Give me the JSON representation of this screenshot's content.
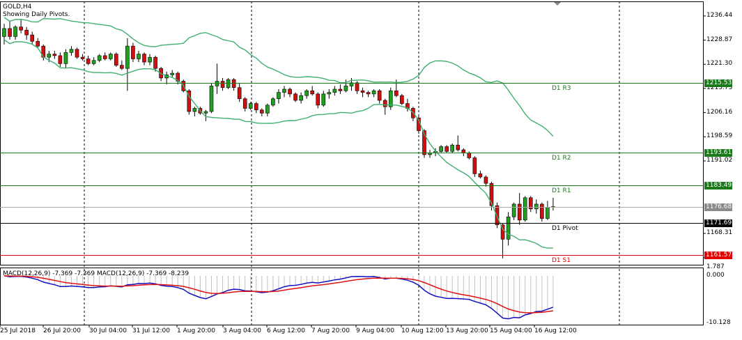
{
  "chart": {
    "symbol_label": "GOLD,H4",
    "indicator_note": "Showing Daily Pivots.",
    "macd_label": "MACD(12,26,9) -7.369 -7.369 MACD(12,26,9) -7.369 -8.239",
    "price_ticks": [
      "1236.44",
      "1228.87",
      "1221.30",
      "1213.73",
      "1206.16",
      "1198.59",
      "1191.02",
      "1168.31",
      "1160.74"
    ],
    "macd_ticks": [
      "1.787",
      "0.000",
      "-10.128"
    ],
    "time_ticks": [
      "25 Jul 2018",
      "26 Jul 20:00",
      "30 Jul 04:00",
      "31 Jul 12:00",
      "1 Aug 20:00",
      "3 Aug 04:00",
      "6 Aug 12:00",
      "7 Aug 20:00",
      "9 Aug 04:00",
      "10 Aug 12:00",
      "13 Aug 20:00",
      "15 Aug 04:00",
      "16 Aug 12:00"
    ],
    "pivots": [
      {
        "name": "D1 R3",
        "price": "1215.53",
        "value": 1215.53,
        "color": "#1a7a1a",
        "tag_bg": "#1a7a1a"
      },
      {
        "name": "D1 R2",
        "price": "1193.61",
        "value": 1193.61,
        "color": "#1a7a1a",
        "tag_bg": "#1a7a1a"
      },
      {
        "name": "D1 R1",
        "price": "1183.49",
        "value": 1183.49,
        "color": "#1a7a1a",
        "tag_bg": "#1a7a1a"
      },
      {
        "name": "D1 Pivot",
        "price": "1171.69",
        "value": 1171.69,
        "color": "#000000",
        "tag_bg": "#000000"
      },
      {
        "name": "D1 S1",
        "price": "1161.57",
        "value": 1161.57,
        "color": "#e00000",
        "tag_bg": "#e00000"
      }
    ],
    "current_price": {
      "price": "1176.68",
      "value": 1176.68,
      "tag_bg": "#8a8a8a"
    },
    "colors": {
      "bull": "#1fa01f",
      "bear": "#d01010",
      "band": "#40b070",
      "macd_line": "#1010c0",
      "signal_line": "#e01010",
      "grid": "#000000"
    }
  },
  "chart_data": {
    "type": "candlestick",
    "title": "GOLD,H4",
    "ylim": [
      1158.5,
      1241.0
    ],
    "candles": [
      {
        "o": 1230.0,
        "h": 1234.0,
        "l": 1227.5,
        "c": 1232.5
      },
      {
        "o": 1232.5,
        "h": 1235.0,
        "l": 1229.0,
        "c": 1230.0
      },
      {
        "o": 1230.0,
        "h": 1233.5,
        "l": 1229.0,
        "c": 1233.0
      },
      {
        "o": 1233.0,
        "h": 1235.5,
        "l": 1231.0,
        "c": 1232.0
      },
      {
        "o": 1232.0,
        "h": 1233.0,
        "l": 1229.0,
        "c": 1230.5
      },
      {
        "o": 1230.5,
        "h": 1231.5,
        "l": 1227.5,
        "c": 1228.5
      },
      {
        "o": 1228.5,
        "h": 1229.5,
        "l": 1226.5,
        "c": 1227.0
      },
      {
        "o": 1227.0,
        "h": 1227.5,
        "l": 1222.5,
        "c": 1223.5
      },
      {
        "o": 1223.5,
        "h": 1225.5,
        "l": 1222.0,
        "c": 1224.5
      },
      {
        "o": 1224.5,
        "h": 1225.5,
        "l": 1223.0,
        "c": 1224.0
      },
      {
        "o": 1224.0,
        "h": 1225.0,
        "l": 1220.5,
        "c": 1221.5
      },
      {
        "o": 1221.5,
        "h": 1226.0,
        "l": 1220.0,
        "c": 1225.0
      },
      {
        "o": 1225.0,
        "h": 1227.0,
        "l": 1224.0,
        "c": 1226.0
      },
      {
        "o": 1226.0,
        "h": 1226.5,
        "l": 1223.0,
        "c": 1223.5
      },
      {
        "o": 1223.5,
        "h": 1224.5,
        "l": 1222.5,
        "c": 1223.0
      },
      {
        "o": 1223.0,
        "h": 1224.0,
        "l": 1221.0,
        "c": 1221.5
      },
      {
        "o": 1221.5,
        "h": 1223.5,
        "l": 1221.0,
        "c": 1222.5
      },
      {
        "o": 1222.5,
        "h": 1224.5,
        "l": 1222.0,
        "c": 1224.0
      },
      {
        "o": 1224.0,
        "h": 1225.0,
        "l": 1222.5,
        "c": 1223.0
      },
      {
        "o": 1223.0,
        "h": 1225.0,
        "l": 1222.5,
        "c": 1224.5
      },
      {
        "o": 1224.5,
        "h": 1225.0,
        "l": 1220.5,
        "c": 1221.0
      },
      {
        "o": 1221.0,
        "h": 1222.5,
        "l": 1219.5,
        "c": 1220.0
      },
      {
        "o": 1220.0,
        "h": 1229.5,
        "l": 1213.0,
        "c": 1227.0
      },
      {
        "o": 1227.0,
        "h": 1228.0,
        "l": 1222.0,
        "c": 1223.0
      },
      {
        "o": 1223.0,
        "h": 1225.5,
        "l": 1222.0,
        "c": 1224.5
      },
      {
        "o": 1224.5,
        "h": 1225.0,
        "l": 1221.0,
        "c": 1222.0
      },
      {
        "o": 1222.0,
        "h": 1224.5,
        "l": 1221.0,
        "c": 1223.5
      },
      {
        "o": 1223.5,
        "h": 1224.0,
        "l": 1219.0,
        "c": 1220.0
      },
      {
        "o": 1220.0,
        "h": 1220.5,
        "l": 1216.0,
        "c": 1217.0
      },
      {
        "o": 1217.0,
        "h": 1219.0,
        "l": 1215.0,
        "c": 1218.0
      },
      {
        "o": 1218.0,
        "h": 1219.5,
        "l": 1217.0,
        "c": 1218.5
      },
      {
        "o": 1218.5,
        "h": 1219.0,
        "l": 1215.0,
        "c": 1216.0
      },
      {
        "o": 1216.0,
        "h": 1216.5,
        "l": 1212.5,
        "c": 1213.0
      },
      {
        "o": 1213.0,
        "h": 1213.5,
        "l": 1205.5,
        "c": 1206.5
      },
      {
        "o": 1206.5,
        "h": 1208.0,
        "l": 1205.0,
        "c": 1207.5
      },
      {
        "o": 1207.5,
        "h": 1208.0,
        "l": 1205.5,
        "c": 1206.0
      },
      {
        "o": 1206.0,
        "h": 1207.0,
        "l": 1203.5,
        "c": 1206.5
      },
      {
        "o": 1206.5,
        "h": 1215.5,
        "l": 1206.0,
        "c": 1214.5
      },
      {
        "o": 1214.5,
        "h": 1221.5,
        "l": 1212.0,
        "c": 1216.0
      },
      {
        "o": 1216.0,
        "h": 1217.0,
        "l": 1213.0,
        "c": 1214.0
      },
      {
        "o": 1214.0,
        "h": 1217.0,
        "l": 1213.5,
        "c": 1216.5
      },
      {
        "o": 1216.5,
        "h": 1217.0,
        "l": 1213.0,
        "c": 1214.0
      },
      {
        "o": 1214.0,
        "h": 1215.5,
        "l": 1209.5,
        "c": 1210.5
      },
      {
        "o": 1210.5,
        "h": 1211.0,
        "l": 1206.5,
        "c": 1207.5
      },
      {
        "o": 1207.5,
        "h": 1209.5,
        "l": 1207.0,
        "c": 1209.0
      },
      {
        "o": 1209.0,
        "h": 1209.5,
        "l": 1206.0,
        "c": 1207.0
      },
      {
        "o": 1207.0,
        "h": 1207.5,
        "l": 1205.0,
        "c": 1206.0
      },
      {
        "o": 1206.0,
        "h": 1209.0,
        "l": 1205.0,
        "c": 1208.5
      },
      {
        "o": 1208.5,
        "h": 1211.0,
        "l": 1208.0,
        "c": 1210.5
      },
      {
        "o": 1210.5,
        "h": 1213.5,
        "l": 1209.0,
        "c": 1212.5
      },
      {
        "o": 1212.5,
        "h": 1214.5,
        "l": 1211.0,
        "c": 1213.5
      },
      {
        "o": 1213.5,
        "h": 1214.0,
        "l": 1211.0,
        "c": 1212.0
      },
      {
        "o": 1212.0,
        "h": 1212.5,
        "l": 1209.5,
        "c": 1210.0
      },
      {
        "o": 1210.0,
        "h": 1212.5,
        "l": 1209.0,
        "c": 1211.5
      },
      {
        "o": 1211.5,
        "h": 1213.5,
        "l": 1210.5,
        "c": 1213.0
      },
      {
        "o": 1213.0,
        "h": 1214.5,
        "l": 1211.5,
        "c": 1212.0
      },
      {
        "o": 1212.0,
        "h": 1212.5,
        "l": 1207.5,
        "c": 1208.5
      },
      {
        "o": 1208.5,
        "h": 1213.0,
        "l": 1208.0,
        "c": 1212.0
      },
      {
        "o": 1212.0,
        "h": 1213.5,
        "l": 1210.5,
        "c": 1212.5
      },
      {
        "o": 1212.5,
        "h": 1214.5,
        "l": 1211.5,
        "c": 1213.5
      },
      {
        "o": 1213.5,
        "h": 1215.0,
        "l": 1212.0,
        "c": 1213.0
      },
      {
        "o": 1213.0,
        "h": 1216.5,
        "l": 1212.5,
        "c": 1214.5
      },
      {
        "o": 1214.5,
        "h": 1217.0,
        "l": 1213.0,
        "c": 1215.5
      },
      {
        "o": 1215.5,
        "h": 1216.0,
        "l": 1212.0,
        "c": 1213.0
      },
      {
        "o": 1213.0,
        "h": 1214.0,
        "l": 1211.0,
        "c": 1212.5
      },
      {
        "o": 1212.5,
        "h": 1213.0,
        "l": 1211.0,
        "c": 1212.0
      },
      {
        "o": 1212.0,
        "h": 1213.5,
        "l": 1211.0,
        "c": 1213.0
      },
      {
        "o": 1213.0,
        "h": 1213.5,
        "l": 1209.0,
        "c": 1210.0
      },
      {
        "o": 1210.0,
        "h": 1210.5,
        "l": 1205.5,
        "c": 1208.0
      },
      {
        "o": 1208.0,
        "h": 1214.0,
        "l": 1207.0,
        "c": 1213.0
      },
      {
        "o": 1213.0,
        "h": 1216.5,
        "l": 1211.0,
        "c": 1211.5
      },
      {
        "o": 1211.5,
        "h": 1212.0,
        "l": 1208.5,
        "c": 1209.0
      },
      {
        "o": 1209.0,
        "h": 1210.5,
        "l": 1206.5,
        "c": 1207.5
      },
      {
        "o": 1207.5,
        "h": 1208.0,
        "l": 1203.5,
        "c": 1204.5
      },
      {
        "o": 1204.5,
        "h": 1205.0,
        "l": 1199.5,
        "c": 1200.5
      },
      {
        "o": 1200.5,
        "h": 1201.0,
        "l": 1192.0,
        "c": 1193.0
      },
      {
        "o": 1193.0,
        "h": 1194.5,
        "l": 1192.0,
        "c": 1193.5
      },
      {
        "o": 1193.5,
        "h": 1195.0,
        "l": 1192.5,
        "c": 1194.0
      },
      {
        "o": 1194.0,
        "h": 1196.0,
        "l": 1193.5,
        "c": 1195.5
      },
      {
        "o": 1195.5,
        "h": 1196.0,
        "l": 1193.5,
        "c": 1194.0
      },
      {
        "o": 1194.0,
        "h": 1196.5,
        "l": 1193.5,
        "c": 1196.0
      },
      {
        "o": 1196.0,
        "h": 1199.0,
        "l": 1194.0,
        "c": 1194.5
      },
      {
        "o": 1194.5,
        "h": 1195.0,
        "l": 1192.5,
        "c": 1193.5
      },
      {
        "o": 1193.5,
        "h": 1194.0,
        "l": 1191.5,
        "c": 1192.0
      },
      {
        "o": 1192.0,
        "h": 1192.5,
        "l": 1186.0,
        "c": 1187.0
      },
      {
        "o": 1187.0,
        "h": 1188.0,
        "l": 1185.5,
        "c": 1186.0
      },
      {
        "o": 1186.0,
        "h": 1186.5,
        "l": 1183.0,
        "c": 1184.0
      },
      {
        "o": 1184.0,
        "h": 1184.5,
        "l": 1175.5,
        "c": 1177.0
      },
      {
        "o": 1177.0,
        "h": 1178.0,
        "l": 1170.0,
        "c": 1171.0
      },
      {
        "o": 1171.0,
        "h": 1171.5,
        "l": 1160.5,
        "c": 1166.5
      },
      {
        "o": 1166.5,
        "h": 1175.0,
        "l": 1164.5,
        "c": 1173.5
      },
      {
        "o": 1173.5,
        "h": 1178.0,
        "l": 1172.5,
        "c": 1177.5
      },
      {
        "o": 1177.5,
        "h": 1181.0,
        "l": 1171.0,
        "c": 1172.5
      },
      {
        "o": 1172.5,
        "h": 1180.0,
        "l": 1172.0,
        "c": 1179.5
      },
      {
        "o": 1179.5,
        "h": 1180.0,
        "l": 1175.0,
        "c": 1176.0
      },
      {
        "o": 1176.0,
        "h": 1179.0,
        "l": 1174.5,
        "c": 1177.5
      },
      {
        "o": 1177.5,
        "h": 1178.0,
        "l": 1172.0,
        "c": 1173.0
      },
      {
        "o": 1173.0,
        "h": 1178.5,
        "l": 1172.5,
        "c": 1176.5
      },
      {
        "o": 1176.5,
        "h": 1179.5,
        "l": 1175.5,
        "c": 1176.7
      }
    ],
    "macd_ylim": [
      -10.5,
      1.787
    ]
  }
}
